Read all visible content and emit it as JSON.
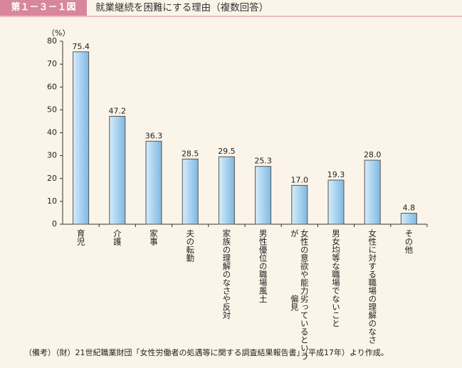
{
  "header": {
    "badge": "第１－３－１図",
    "title": "就業継続を困難にする理由（複数回答）"
  },
  "chart_data": {
    "type": "bar",
    "y_axis_label": "（%）",
    "categories": [
      "育児",
      "介護",
      "家事",
      "夫の転勤",
      "家族の理解のなさや反対",
      "男性優位の職場風土",
      [
        "女性の意欲や能力が",
        "劣っているという偏見"
      ],
      "男女均等な職場でないこと",
      "女性に対する職場の理解のなさ",
      "その他"
    ],
    "values": [
      75.4,
      47.2,
      36.3,
      28.5,
      29.5,
      25.3,
      17.0,
      19.3,
      28.0,
      4.8
    ],
    "value_labels": [
      "75.4",
      "47.2",
      "36.3",
      "28.5",
      "29.5",
      "25.3",
      "17.0",
      "19.3",
      "28.0",
      "4.8"
    ],
    "color": "#a8d3f0",
    "ylim": [
      0,
      80
    ],
    "yticks": [
      0,
      10,
      20,
      30,
      40,
      50,
      60,
      70,
      80
    ]
  },
  "note": "（備考）（財）21世紀職業財団「女性労働者の処遇等に関する調査結果報告書」（平成17年）より作成。"
}
